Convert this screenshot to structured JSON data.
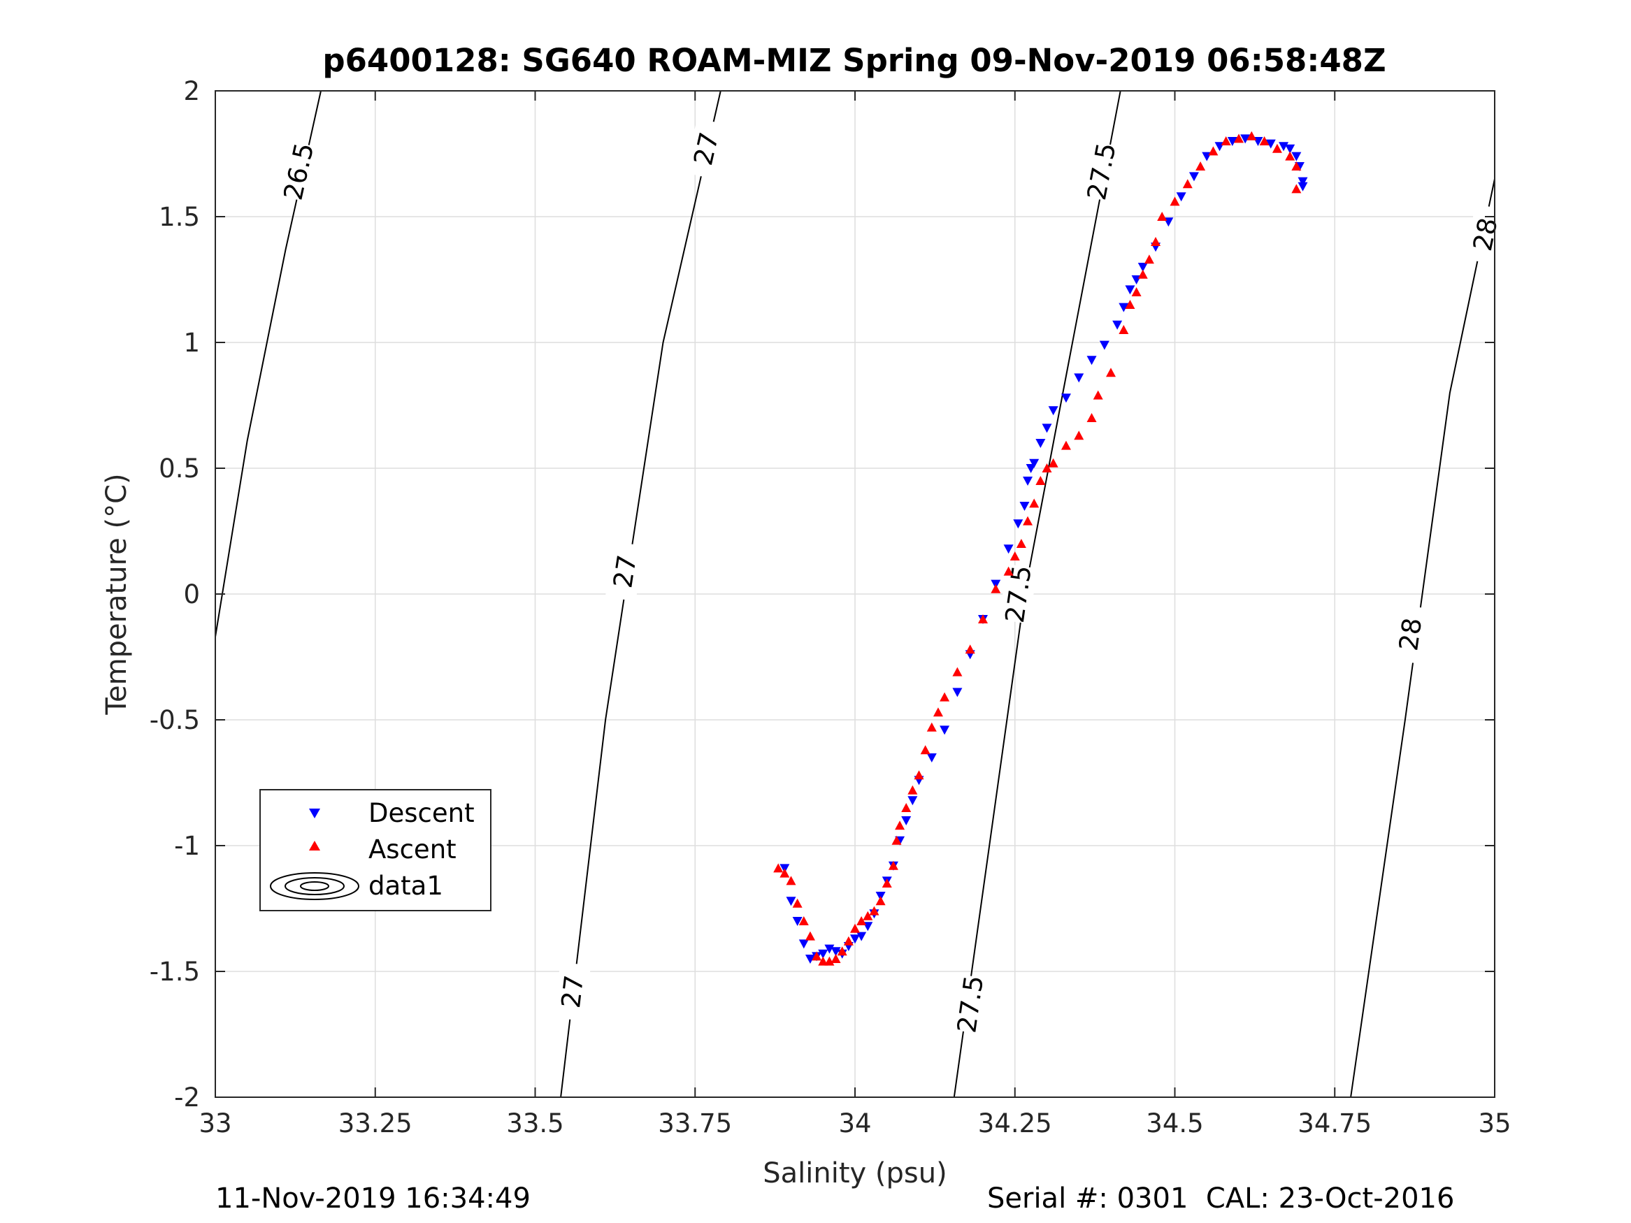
{
  "chart_data": {
    "type": "scatter",
    "title": "p6400128: SG640 ROAM-MIZ Spring 09-Nov-2019 06:58:48Z",
    "xlabel": "Salinity (psu)",
    "ylabel": "Temperature (°C)",
    "xlim": [
      33,
      35
    ],
    "ylim": [
      -2,
      2
    ],
    "xticks": [
      "33",
      "33.25",
      "33.5",
      "33.75",
      "34",
      "34.25",
      "34.5",
      "34.75",
      "35"
    ],
    "yticks": [
      "2",
      "1.5",
      "1",
      "0.5",
      "0",
      "-0.5",
      "-1",
      "-1.5",
      "-2"
    ],
    "grid": true,
    "legend_position": "lower-left",
    "legend": [
      "Descent",
      "Ascent",
      "data1"
    ],
    "colors": {
      "descent": "#0000ff",
      "ascent": "#ff0000",
      "contour": "#000000"
    },
    "series": [
      {
        "name": "Descent",
        "marker": "triangle-down",
        "x": [
          33.89,
          33.9,
          33.91,
          33.92,
          33.93,
          33.94,
          33.95,
          33.96,
          33.97,
          33.98,
          33.99,
          34.0,
          34.01,
          34.02,
          34.03,
          34.04,
          34.05,
          34.06,
          34.07,
          34.08,
          34.09,
          34.1,
          34.12,
          34.14,
          34.16,
          34.18,
          34.2,
          34.22,
          34.24,
          34.255,
          34.265,
          34.27,
          34.275,
          34.28,
          34.29,
          34.3,
          34.31,
          34.33,
          34.35,
          34.37,
          34.39,
          34.41,
          34.42,
          34.43,
          34.44,
          34.45,
          34.47,
          34.49,
          34.51,
          34.53,
          34.55,
          34.57,
          34.59,
          34.61,
          34.63,
          34.65,
          34.67,
          34.68,
          34.69,
          34.695,
          34.7,
          34.7
        ],
        "y": [
          -1.09,
          -1.22,
          -1.3,
          -1.39,
          -1.45,
          -1.44,
          -1.43,
          -1.41,
          -1.42,
          -1.43,
          -1.4,
          -1.37,
          -1.36,
          -1.32,
          -1.27,
          -1.2,
          -1.14,
          -1.08,
          -0.98,
          -0.9,
          -0.82,
          -0.74,
          -0.65,
          -0.54,
          -0.39,
          -0.24,
          -0.1,
          0.04,
          0.18,
          0.28,
          0.35,
          0.45,
          0.5,
          0.52,
          0.6,
          0.66,
          0.73,
          0.78,
          0.86,
          0.93,
          0.99,
          1.07,
          1.14,
          1.21,
          1.25,
          1.3,
          1.38,
          1.48,
          1.58,
          1.66,
          1.74,
          1.78,
          1.8,
          1.81,
          1.8,
          1.79,
          1.78,
          1.77,
          1.74,
          1.7,
          1.64,
          1.62
        ]
      },
      {
        "name": "Ascent",
        "marker": "triangle-up",
        "x": [
          33.88,
          33.89,
          33.9,
          33.91,
          33.92,
          33.93,
          33.94,
          33.95,
          33.96,
          33.97,
          33.98,
          33.99,
          34.0,
          34.01,
          34.02,
          34.03,
          34.04,
          34.05,
          34.06,
          34.065,
          34.07,
          34.08,
          34.09,
          34.1,
          34.11,
          34.12,
          34.13,
          34.14,
          34.16,
          34.18,
          34.2,
          34.22,
          34.24,
          34.25,
          34.26,
          34.27,
          34.28,
          34.29,
          34.3,
          34.31,
          34.33,
          34.35,
          34.37,
          34.38,
          34.4,
          34.42,
          34.43,
          34.44,
          34.45,
          34.46,
          34.47,
          34.48,
          34.5,
          34.52,
          34.54,
          34.56,
          34.58,
          34.6,
          34.62,
          34.64,
          34.66,
          34.68,
          34.69,
          34.69
        ],
        "y": [
          -1.09,
          -1.11,
          -1.14,
          -1.23,
          -1.3,
          -1.36,
          -1.44,
          -1.46,
          -1.46,
          -1.45,
          -1.42,
          -1.38,
          -1.33,
          -1.3,
          -1.28,
          -1.26,
          -1.22,
          -1.15,
          -1.08,
          -0.98,
          -0.92,
          -0.85,
          -0.78,
          -0.72,
          -0.62,
          -0.53,
          -0.47,
          -0.41,
          -0.31,
          -0.22,
          -0.1,
          0.02,
          0.09,
          0.15,
          0.2,
          0.29,
          0.36,
          0.45,
          0.5,
          0.52,
          0.59,
          0.63,
          0.7,
          0.79,
          0.88,
          1.05,
          1.15,
          1.2,
          1.27,
          1.33,
          1.4,
          1.5,
          1.56,
          1.63,
          1.7,
          1.76,
          1.8,
          1.81,
          1.82,
          1.8,
          1.77,
          1.74,
          1.7,
          1.61
        ]
      }
    ],
    "density_contours": [
      {
        "level": "26.5",
        "points": [
          [
            33.0,
            -0.17
          ],
          [
            33.05,
            0.61
          ],
          [
            33.11,
            1.37
          ],
          [
            33.165,
            2.0
          ]
        ],
        "labels": [
          {
            "x": 33.13,
            "y": 1.68
          }
        ]
      },
      {
        "level": "27",
        "points": [
          [
            33.54,
            -2.0
          ],
          [
            33.61,
            -0.5
          ],
          [
            33.7,
            1.0
          ],
          [
            33.79,
            2.0
          ]
        ],
        "labels": [
          {
            "x": 33.558,
            "y": -1.58
          },
          {
            "x": 33.64,
            "y": 0.09
          },
          {
            "x": 33.767,
            "y": 1.77
          }
        ]
      },
      {
        "level": "27.5",
        "points": [
          [
            34.155,
            -2.0
          ],
          [
            34.21,
            -1.0
          ],
          [
            34.265,
            0.0
          ],
          [
            34.34,
            1.0
          ],
          [
            34.415,
            2.0
          ]
        ],
        "labels": [
          {
            "x": 34.18,
            "y": -1.63
          },
          {
            "x": 34.255,
            "y": 0.0
          },
          {
            "x": 34.385,
            "y": 1.68
          }
        ]
      },
      {
        "level": "28",
        "points": [
          [
            34.775,
            -2.0
          ],
          [
            34.86,
            -0.5
          ],
          [
            34.93,
            0.8
          ],
          [
            35.0,
            1.65
          ]
        ],
        "labels": [
          {
            "x": 34.868,
            "y": -0.16
          },
          {
            "x": 34.985,
            "y": 1.43
          }
        ]
      }
    ]
  },
  "footer": {
    "timestamp": "11-Nov-2019 16:34:49",
    "serial_cal": "Serial #: 0301  CAL: 23-Oct-2016"
  }
}
